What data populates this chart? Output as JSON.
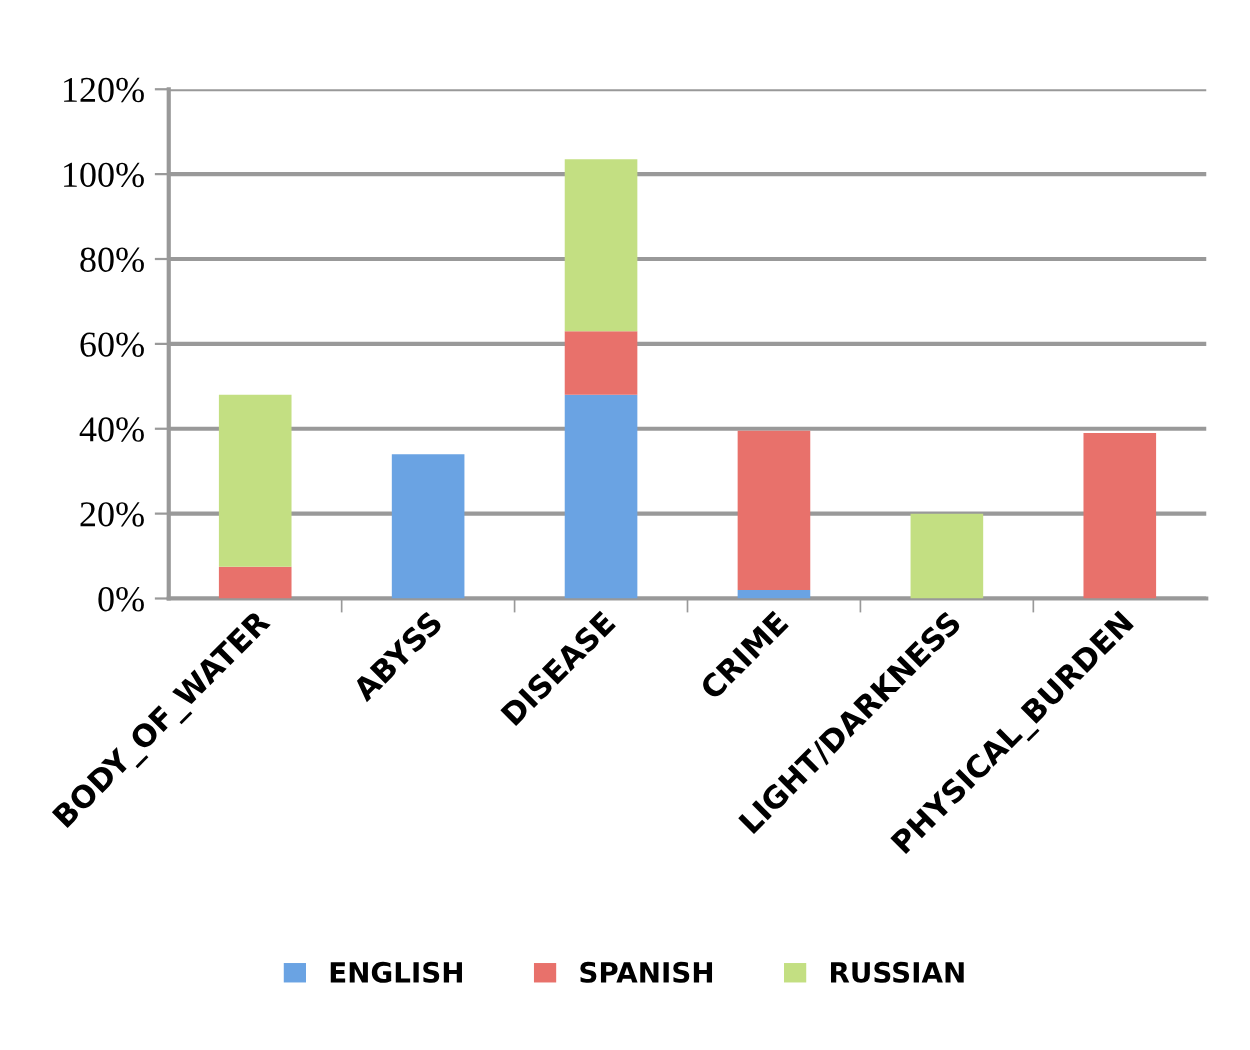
{
  "chart_data": {
    "type": "bar",
    "stacked": true,
    "categories": [
      "BODY_OF_WATER",
      "ABYSS",
      "DISEASE",
      "CRIME",
      "LIGHT/DARKNESS",
      "PHYSICAL_BURDEN"
    ],
    "series": [
      {
        "name": "ENGLISH",
        "color": "#6aa3e3",
        "values": [
          0,
          34,
          48,
          2,
          0,
          0
        ]
      },
      {
        "name": "SPANISH",
        "color": "#e8716b",
        "values": [
          7.5,
          0,
          15,
          37.5,
          0,
          39
        ]
      },
      {
        "name": "RUSSIAN",
        "color": "#c3df82",
        "values": [
          40.5,
          0,
          40.5,
          0,
          20,
          0
        ]
      }
    ],
    "ylim": [
      0,
      120
    ],
    "yticks": [
      {
        "value": 0,
        "label": "0%"
      },
      {
        "value": 20,
        "label": "20%"
      },
      {
        "value": 40,
        "label": "40%"
      },
      {
        "value": 60,
        "label": "60%"
      },
      {
        "value": 80,
        "label": "80%"
      },
      {
        "value": 100,
        "label": "100%"
      },
      {
        "value": 120,
        "label": "120%"
      }
    ],
    "grid": "y",
    "legend": "bottom"
  }
}
